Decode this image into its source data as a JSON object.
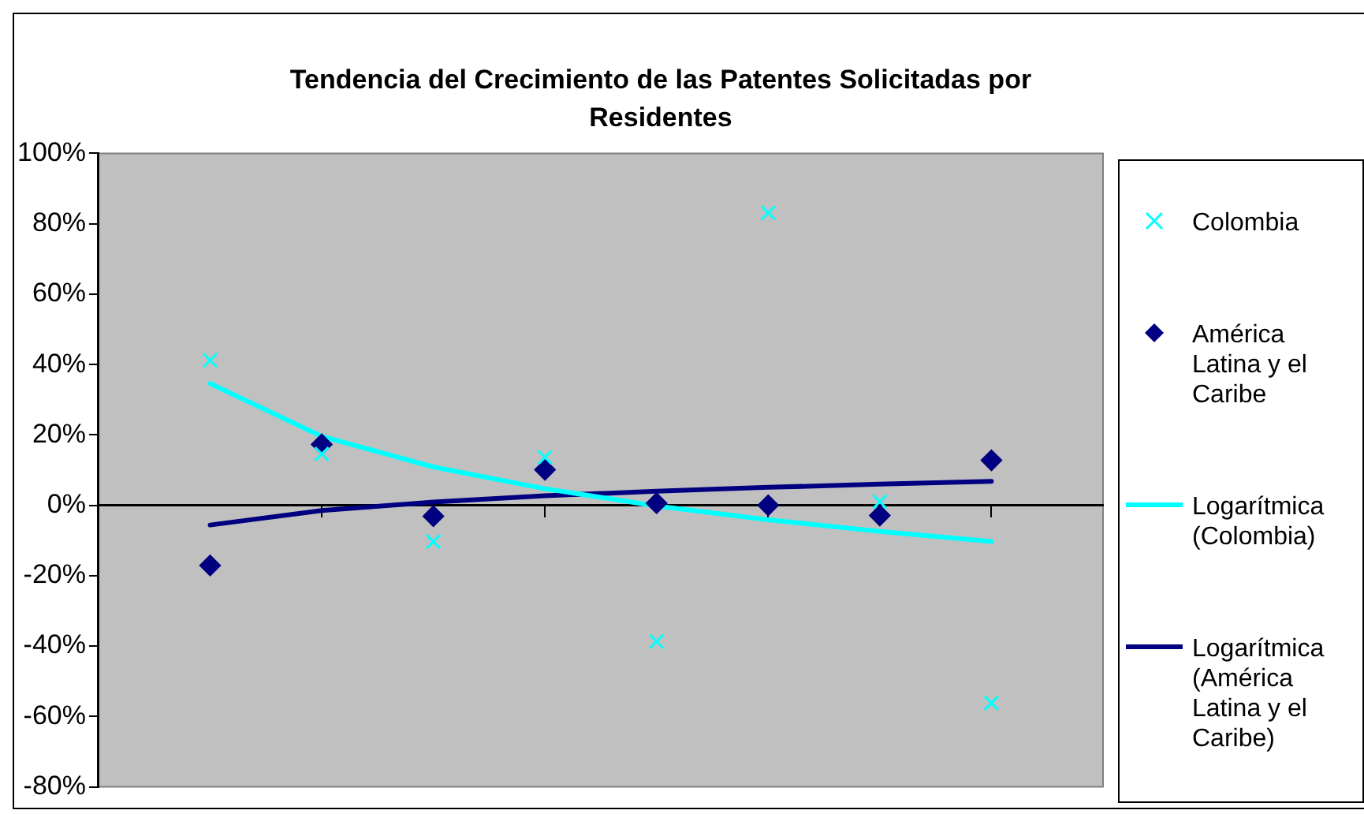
{
  "chart_data": {
    "type": "line",
    "title": "Tendencia del Crecimiento de las Patentes Solicitadas por Residentes",
    "categories": [
      null,
      null,
      null,
      null,
      null,
      null,
      null,
      null
    ],
    "ylim": [
      -80,
      100
    ],
    "yticks": [
      {
        "value": -80,
        "label": "-80%"
      },
      {
        "value": -60,
        "label": "-60%"
      },
      {
        "value": -40,
        "label": "-40%"
      },
      {
        "value": -20,
        "label": "-20%"
      },
      {
        "value": 0,
        "label": "0%"
      },
      {
        "value": 20,
        "label": "20%"
      },
      {
        "value": 40,
        "label": "40%"
      },
      {
        "value": 60,
        "label": "60%"
      },
      {
        "value": 80,
        "label": "80%"
      },
      {
        "value": 100,
        "label": "100%"
      }
    ],
    "legend": "right",
    "series": [
      {
        "name": "Colombia",
        "type": "scatter",
        "marker": "cross",
        "color": "#00ffff",
        "values": [
          41.2,
          14.6,
          -10.3,
          13.6,
          -38.7,
          83.1,
          1.0,
          -56.2
        ]
      },
      {
        "name": "América Latina y el Caribe",
        "type": "scatter",
        "marker": "diamond",
        "color": "#000080",
        "values": [
          -17.1,
          17.3,
          -3.1,
          10.1,
          0.6,
          0,
          -2.9,
          12.8
        ]
      },
      {
        "name": "Logarítmica (Colombia)",
        "marker": "none",
        "color": "#00ffff",
        "values": [
          34.6,
          19.6,
          10.9,
          4.7,
          -0.2,
          -4.1,
          -7.4,
          -10.3
        ]
      },
      {
        "name": "Logarítmica (América Latina y el Caribe)",
        "marker": "none",
        "color": "#000080",
        "values": [
          -5.6,
          -1.5,
          0.9,
          2.7,
          4.0,
          5.1,
          6.0,
          6.8
        ]
      }
    ]
  }
}
